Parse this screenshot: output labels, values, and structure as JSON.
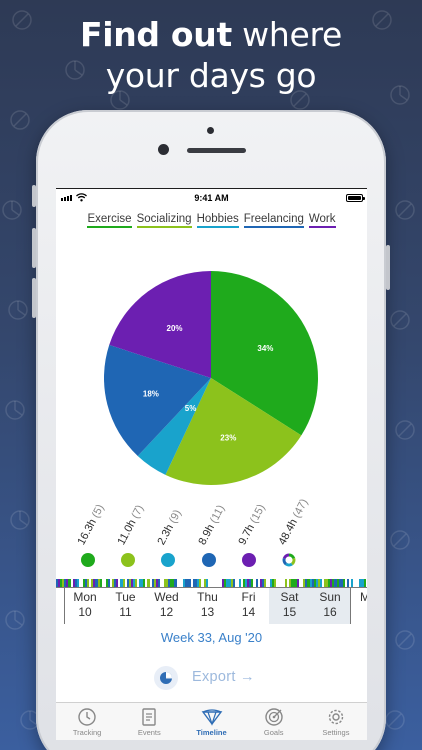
{
  "headline": {
    "bold": "Find out",
    "rest_line1": " where",
    "line2": "your days go"
  },
  "status": {
    "time": "9:41 AM"
  },
  "legend": [
    {
      "label": "Exercise",
      "color": "#1faa1c"
    },
    {
      "label": "Socializing",
      "color": "#8cc21c"
    },
    {
      "label": "Hobbies",
      "color": "#19a3cc"
    },
    {
      "label": "Freelancing",
      "color": "#1f66b4"
    },
    {
      "label": "Work",
      "color": "#6c1fb1"
    }
  ],
  "pie": {
    "slices": [
      {
        "name": "Exercise",
        "value": 34,
        "label": "34%",
        "color": "#1faa1c"
      },
      {
        "name": "Socializing",
        "value": 23,
        "label": "23%",
        "color": "#8cc21c"
      },
      {
        "name": "Hobbies",
        "value": 5,
        "label": "5%",
        "color": "#19a3cc"
      },
      {
        "name": "Freelancing",
        "value": 18,
        "label": "18%",
        "color": "#1f66b4"
      },
      {
        "name": "Work",
        "value": 20,
        "label": "20%",
        "color": "#6c1fb1"
      }
    ]
  },
  "stats": [
    {
      "hours": "16.3h",
      "count": "(5)",
      "color": "#1faa1c"
    },
    {
      "hours": "11.0h",
      "count": "(7)",
      "color": "#8cc21c"
    },
    {
      "hours": "2.3h",
      "count": "(9)",
      "color": "#19a3cc"
    },
    {
      "hours": "8.9h",
      "count": "(11)",
      "color": "#1f66b4"
    },
    {
      "hours": "9.7h",
      "count": "(15)",
      "color": "#6c1fb1"
    },
    {
      "hours": "48.4h",
      "count": "(47)",
      "color": "total"
    }
  ],
  "days": [
    {
      "name": "Mon",
      "num": "10",
      "weekend": false
    },
    {
      "name": "Tue",
      "num": "11",
      "weekend": false
    },
    {
      "name": "Wed",
      "num": "12",
      "weekend": false
    },
    {
      "name": "Thu",
      "num": "13",
      "weekend": false
    },
    {
      "name": "Fri",
      "num": "14",
      "weekend": false
    },
    {
      "name": "Sat",
      "num": "15",
      "weekend": true
    },
    {
      "name": "Sun",
      "num": "16",
      "weekend": true
    }
  ],
  "day_edge": "M",
  "week_label": "Week 33, Aug '20",
  "export": {
    "label": "Export →",
    "icon": "pie-chart-icon"
  },
  "tabs": [
    {
      "label": "Tracking",
      "icon": "clock-icon",
      "active": false
    },
    {
      "label": "Events",
      "icon": "document-icon",
      "active": false
    },
    {
      "label": "Timeline",
      "icon": "timeline-icon",
      "active": true
    },
    {
      "label": "Goals",
      "icon": "target-icon",
      "active": false
    },
    {
      "label": "Settings",
      "icon": "gear-icon",
      "active": false
    }
  ]
}
